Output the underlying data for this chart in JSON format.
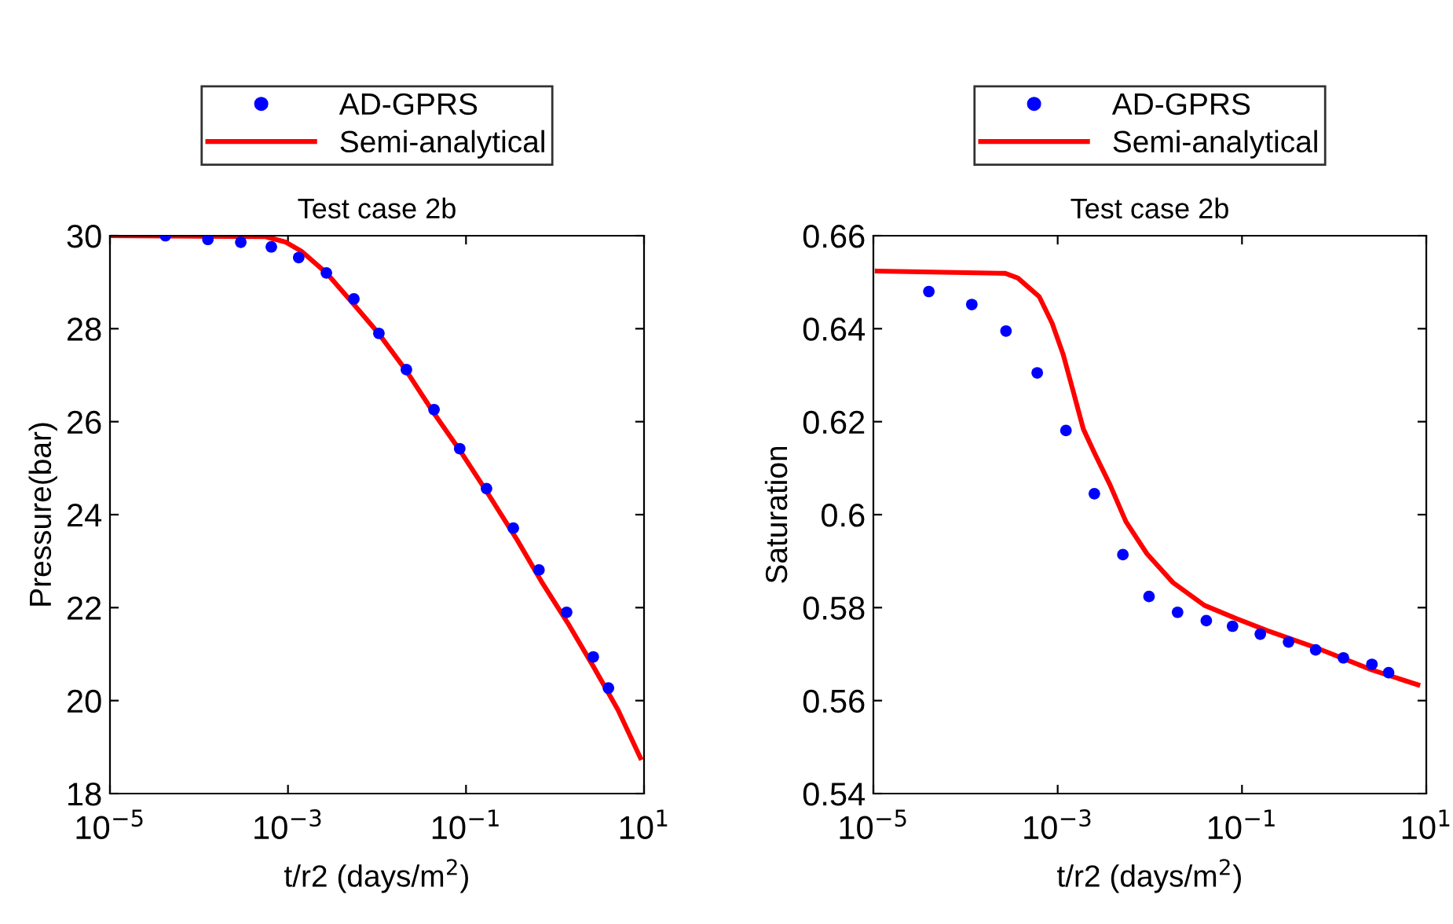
{
  "chart_data": [
    {
      "type": "line",
      "title": "Test case 2b",
      "xlabel": "t/r2 (days/m$^{2}$)",
      "ylabel": "Pressure(bar)",
      "log": "x",
      "xlim": [
        1e-05,
        10
      ],
      "xticks": [
        {
          "value": 1e-05,
          "label": "10$^{−5}$"
        },
        {
          "value": 0.001,
          "label": "10$^{−3}$"
        },
        {
          "value": 0.1,
          "label": "10$^{−1}$"
        },
        {
          "value": 10,
          "label": "10$^{1}$"
        }
      ],
      "ylim": [
        18,
        30
      ],
      "yticks": [
        18,
        20,
        22,
        24,
        26,
        28,
        30
      ],
      "grid": false,
      "legend": "top",
      "series": [
        {
          "name": "AD-GPRS",
          "type": "scatter",
          "marker": "circle",
          "color": "#0000ff",
          "x": [
            4.2e-05,
            0.000126,
            0.000295,
            0.00065,
            0.00132,
            0.0027,
            0.0055,
            0.0105,
            0.0214,
            0.0437,
            0.085,
            0.17,
            0.34,
            0.66,
            1.35,
            2.69,
            3.98
          ],
          "values": [
            30.0,
            29.92,
            29.86,
            29.76,
            29.53,
            29.2,
            28.64,
            27.9,
            27.12,
            26.26,
            25.42,
            24.56,
            23.71,
            22.81,
            21.9,
            20.94,
            20.27
          ]
        },
        {
          "name": "Semi-analytical",
          "marker": "none",
          "line_style": "solid",
          "color": "#ff0000",
          "x": [
            1e-05,
            0.00056,
            0.00095,
            0.00141,
            0.0027,
            0.0055,
            0.0105,
            0.0214,
            0.0437,
            0.089,
            0.174,
            0.38,
            0.72,
            1.38,
            2.63,
            5.1,
            9.1
          ],
          "values": [
            30,
            29.98,
            29.86,
            29.67,
            29.2,
            28.52,
            27.89,
            27.09,
            26.18,
            25.33,
            24.47,
            23.44,
            22.53,
            21.68,
            20.77,
            19.8,
            18.77
          ]
        }
      ]
    },
    {
      "type": "line",
      "title": "Test case 2b",
      "xlabel": "t/r2 (days/m$^{2}$)",
      "ylabel": "Saturation",
      "log": "x",
      "xlim": [
        1e-05,
        10
      ],
      "xticks": [
        {
          "value": 1e-05,
          "label": "10$^{−5}$"
        },
        {
          "value": 0.001,
          "label": "10$^{−3}$"
        },
        {
          "value": 0.1,
          "label": "10$^{−1}$"
        },
        {
          "value": 10,
          "label": "10$^{1}$"
        }
      ],
      "ylim": [
        0.54,
        0.66
      ],
      "yticks": [
        0.54,
        0.56,
        0.58,
        0.6,
        0.62,
        0.64,
        0.66
      ],
      "grid": false,
      "legend": "top",
      "series": [
        {
          "name": "AD-GPRS",
          "type": "scatter",
          "marker": "circle",
          "color": "#0000ff",
          "x": [
            4e-05,
            0.000117,
            0.000275,
            0.0006,
            0.00123,
            0.0025,
            0.0051,
            0.0098,
            0.02,
            0.041,
            0.079,
            0.158,
            0.32,
            0.63,
            1.26,
            2.57,
            3.9
          ],
          "values": [
            0.648,
            0.6452,
            0.6395,
            0.6305,
            0.6181,
            0.6045,
            0.5914,
            0.5824,
            0.579,
            0.5772,
            0.576,
            0.5743,
            0.5726,
            0.5709,
            0.5692,
            0.5678,
            0.566
          ]
        },
        {
          "name": "Semi-analytical",
          "marker": "none",
          "line_style": "solid",
          "color": "#ff0000",
          "x": [
            1.1e-05,
            0.00027,
            0.00037,
            0.00063,
            0.00087,
            0.00115,
            0.00148,
            0.0019,
            0.0025,
            0.0037,
            0.0055,
            0.0093,
            0.0178,
            0.039,
            0.085,
            0.186,
            0.69,
            2.57,
            8.1
          ],
          "values": [
            0.6524,
            0.6519,
            0.6509,
            0.6469,
            0.6412,
            0.6344,
            0.6264,
            0.6184,
            0.6133,
            0.6064,
            0.5985,
            0.5916,
            0.5854,
            0.5805,
            0.5777,
            0.5751,
            0.5711,
            0.5666,
            0.5634
          ]
        }
      ]
    }
  ]
}
